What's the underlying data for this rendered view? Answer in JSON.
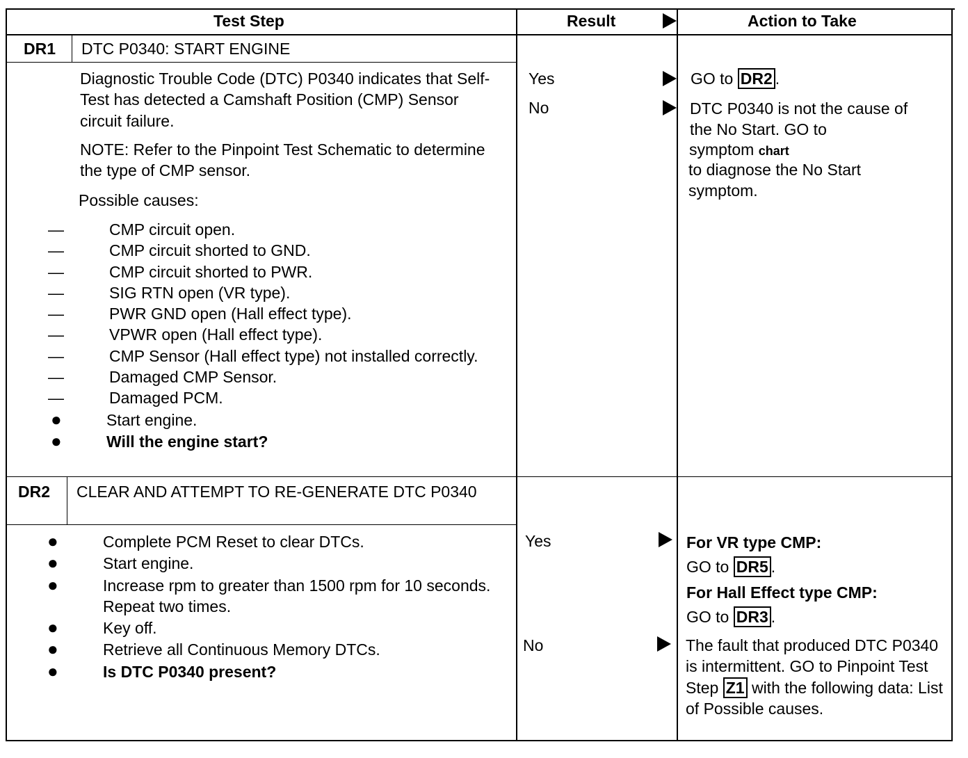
{
  "header": {
    "test_step": "Test Step",
    "result": "Result",
    "action": "Action to Take"
  },
  "dr1": {
    "id": "DR1",
    "title": "DTC P0340: START ENGINE",
    "description": "Diagnostic Trouble Code (DTC) P0340 indicates that Self-Test has detected a Camshaft Position (CMP) Sensor circuit failure.",
    "note": "NOTE: Refer to the Pinpoint Test Schematic to determine the type of CMP sensor.",
    "causes_label": "Possible causes:",
    "causes": [
      "CMP circuit open.",
      "CMP circuit shorted to GND.",
      "CMP circuit shorted to PWR.",
      "SIG RTN open (VR type).",
      "PWR GND open (Hall effect type).",
      "VPWR open (Hall effect type).",
      "CMP Sensor (Hall effect type) not installed correctly.",
      "Damaged CMP Sensor.",
      "Damaged PCM."
    ],
    "steps": [
      "Start engine.",
      "Will the engine start?"
    ],
    "results": {
      "yes": "Yes",
      "no": "No"
    },
    "action_yes": {
      "prefix": "GO to",
      "link": "DR2",
      "suffix": "."
    },
    "action_no": [
      "DTC P0340 is not the cause of",
      "the No Start. GO to",
      "symptom",
      "chart",
      "to diagnose the No Start",
      "symptom."
    ]
  },
  "dr2": {
    "id": "DR2",
    "title": "CLEAR AND ATTEMPT TO RE-GENERATE DTC P0340",
    "steps": [
      "Complete PCM Reset to clear DTCs.",
      "Start engine.",
      "Increase rpm to greater than 1500 rpm for 10 seconds. Repeat two times.",
      "Key off.",
      "Retrieve all Continuous Memory DTCs.",
      "Is DTC P0340 present?"
    ],
    "results": {
      "yes": "Yes",
      "no": "No"
    },
    "action_yes": {
      "vr_label": "For VR type CMP:",
      "vr_prefix": "GO to",
      "vr_link": "DR5",
      "hall_label": "For Hall Effect type CMP:",
      "hall_prefix": "GO to",
      "hall_link": "DR3",
      "suffix": "."
    },
    "action_no": {
      "text1": "The fault that produced DTC P0340 is intermittent. GO to Pinpoint Test Step",
      "link": "Z1",
      "text2": "with the following data: List of Possible causes."
    }
  }
}
